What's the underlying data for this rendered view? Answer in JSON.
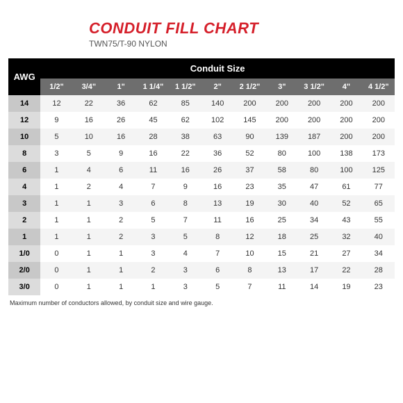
{
  "header": {
    "title": "CONDUIT FILL CHART",
    "subtitle": "TWN75/T-90 NYLON",
    "title_color": "#d51f2a",
    "title_fontsize": 22,
    "subtitle_fontsize": 12
  },
  "table": {
    "row_header_label": "AWG",
    "spanner_label": "Conduit Size",
    "columns": [
      "1/2\"",
      "3/4\"",
      "1\"",
      "1 1/4\"",
      "1 1/2\"",
      "2\"",
      "2 1/2\"",
      "3\"",
      "3 1/2\"",
      "4\"",
      "4 1/2\""
    ],
    "row_labels": [
      "14",
      "12",
      "10",
      "8",
      "6",
      "4",
      "3",
      "2",
      "1",
      "1/0",
      "2/0",
      "3/0"
    ],
    "rows": [
      [
        12,
        22,
        36,
        62,
        85,
        140,
        200,
        200,
        200,
        200,
        200
      ],
      [
        9,
        16,
        26,
        45,
        62,
        102,
        145,
        200,
        200,
        200,
        200
      ],
      [
        5,
        10,
        16,
        28,
        38,
        63,
        90,
        139,
        187,
        200,
        200
      ],
      [
        3,
        5,
        9,
        16,
        22,
        36,
        52,
        80,
        100,
        138,
        173
      ],
      [
        1,
        4,
        6,
        11,
        16,
        26,
        37,
        58,
        80,
        100,
        125
      ],
      [
        1,
        2,
        4,
        7,
        9,
        16,
        23,
        35,
        47,
        61,
        77
      ],
      [
        1,
        1,
        3,
        6,
        8,
        13,
        19,
        30,
        40,
        52,
        65
      ],
      [
        1,
        1,
        2,
        5,
        7,
        11,
        16,
        25,
        34,
        43,
        55
      ],
      [
        1,
        1,
        2,
        3,
        5,
        8,
        12,
        18,
        25,
        32,
        40
      ],
      [
        0,
        1,
        1,
        3,
        4,
        7,
        10,
        15,
        21,
        27,
        34
      ],
      [
        0,
        1,
        1,
        2,
        3,
        6,
        8,
        13,
        17,
        22,
        28
      ],
      [
        0,
        1,
        1,
        1,
        3,
        5,
        7,
        11,
        14,
        19,
        23
      ]
    ],
    "row_label_bg_even": "#c8c8c8",
    "row_label_bg_odd": "#dcdcdc",
    "row_bg_even": "#f4f4f4",
    "row_bg_odd": "#ffffff",
    "cell_text_color": "#333333"
  },
  "footnote": "Maximum number of conductors allowed, by conduit size and wire gauge."
}
